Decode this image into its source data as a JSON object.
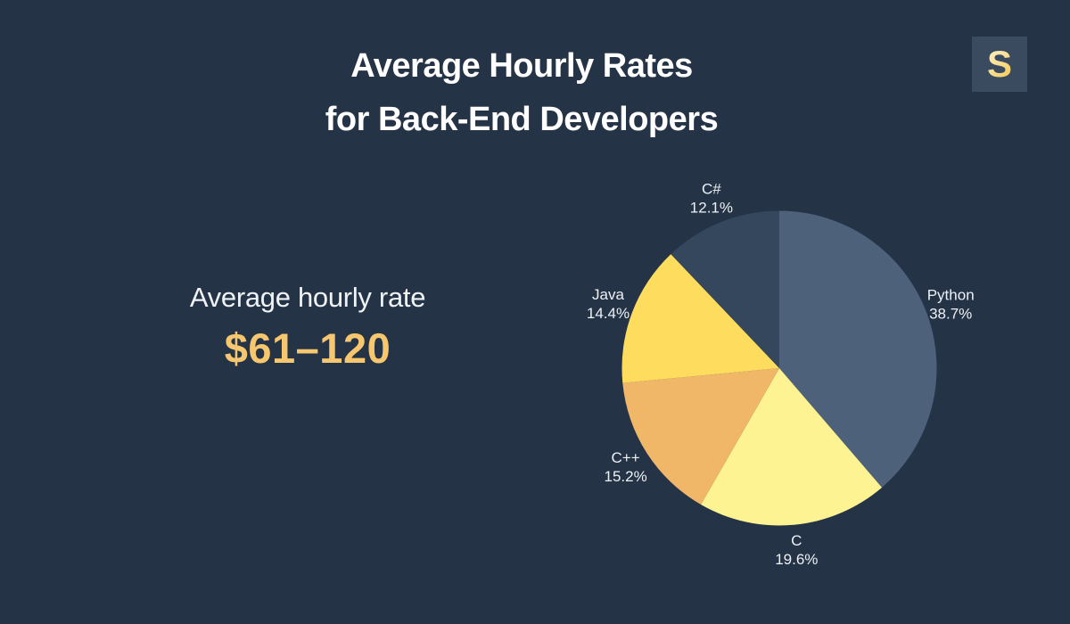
{
  "page": {
    "background": "#253346"
  },
  "header": {
    "title_line1": "Average Hourly Rates",
    "title_line2": "for Back-End Developers"
  },
  "logo": {
    "letter": "S",
    "badge_color": "#3a4b60",
    "letter_color": "#f5ce61"
  },
  "stat": {
    "label": "Average hourly rate",
    "value": "$61–120",
    "value_color": "#f6c76e"
  },
  "chart_data": {
    "type": "pie",
    "title": "Average Hourly Rates for Back-End Developers",
    "categories": [
      "Python",
      "C",
      "C++",
      "Java",
      "C#"
    ],
    "values": [
      38.7,
      19.6,
      15.2,
      14.4,
      12.1
    ],
    "unit": "%",
    "colors": [
      "#4d617a",
      "#fdf392",
      "#f1b768",
      "#fedd5e",
      "#34475d"
    ],
    "start_angle_deg": 0,
    "direction": "clockwise",
    "legend_position": "outside-labels",
    "label_color": "#edf1f5"
  }
}
